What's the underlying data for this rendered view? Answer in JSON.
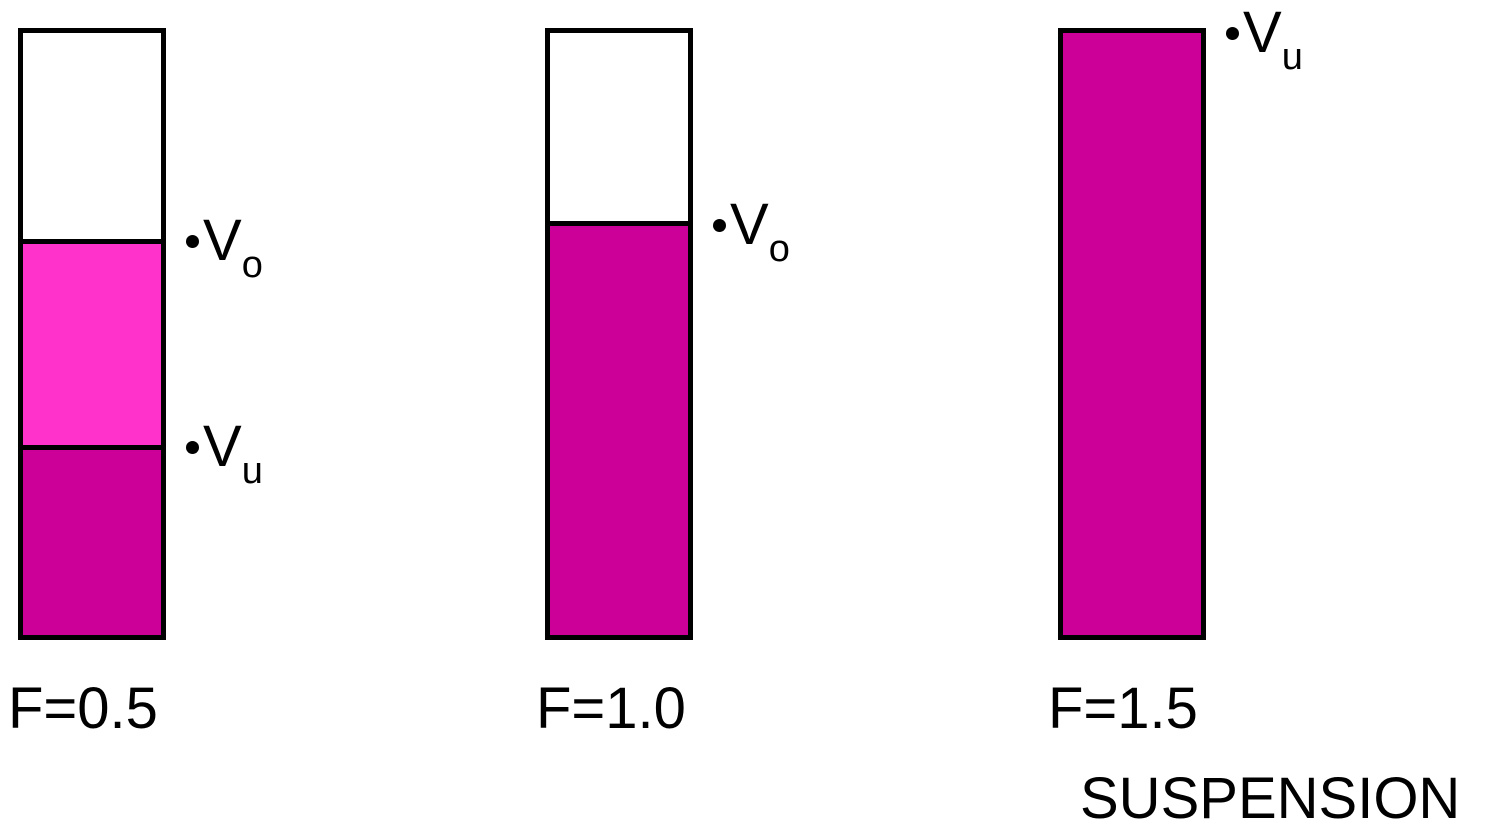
{
  "tubes": [
    {
      "label": "F=0.5",
      "layers": [
        {
          "fraction": 0.66,
          "color": "#ff33cc"
        },
        {
          "fraction": 0.32,
          "color": "#cc0099"
        }
      ],
      "markers": [
        {
          "symbol": "V",
          "subscript": "o"
        },
        {
          "symbol": "V",
          "subscript": "u"
        }
      ]
    },
    {
      "label": "F=1.0",
      "layers": [
        {
          "fraction": 0.69,
          "color": "#cc0099"
        }
      ],
      "markers": [
        {
          "symbol": "V",
          "subscript": "o"
        }
      ]
    },
    {
      "label": "F=1.5",
      "layers": [
        {
          "fraction": 1.0,
          "color": "#cc0099"
        }
      ],
      "markers": [
        {
          "symbol": "V",
          "subscript": "u"
        }
      ]
    }
  ],
  "caption": "SUSPENSION",
  "colors": {
    "light_magenta": "#ff33cc",
    "dark_magenta": "#cc0099",
    "outline": "#000000"
  }
}
